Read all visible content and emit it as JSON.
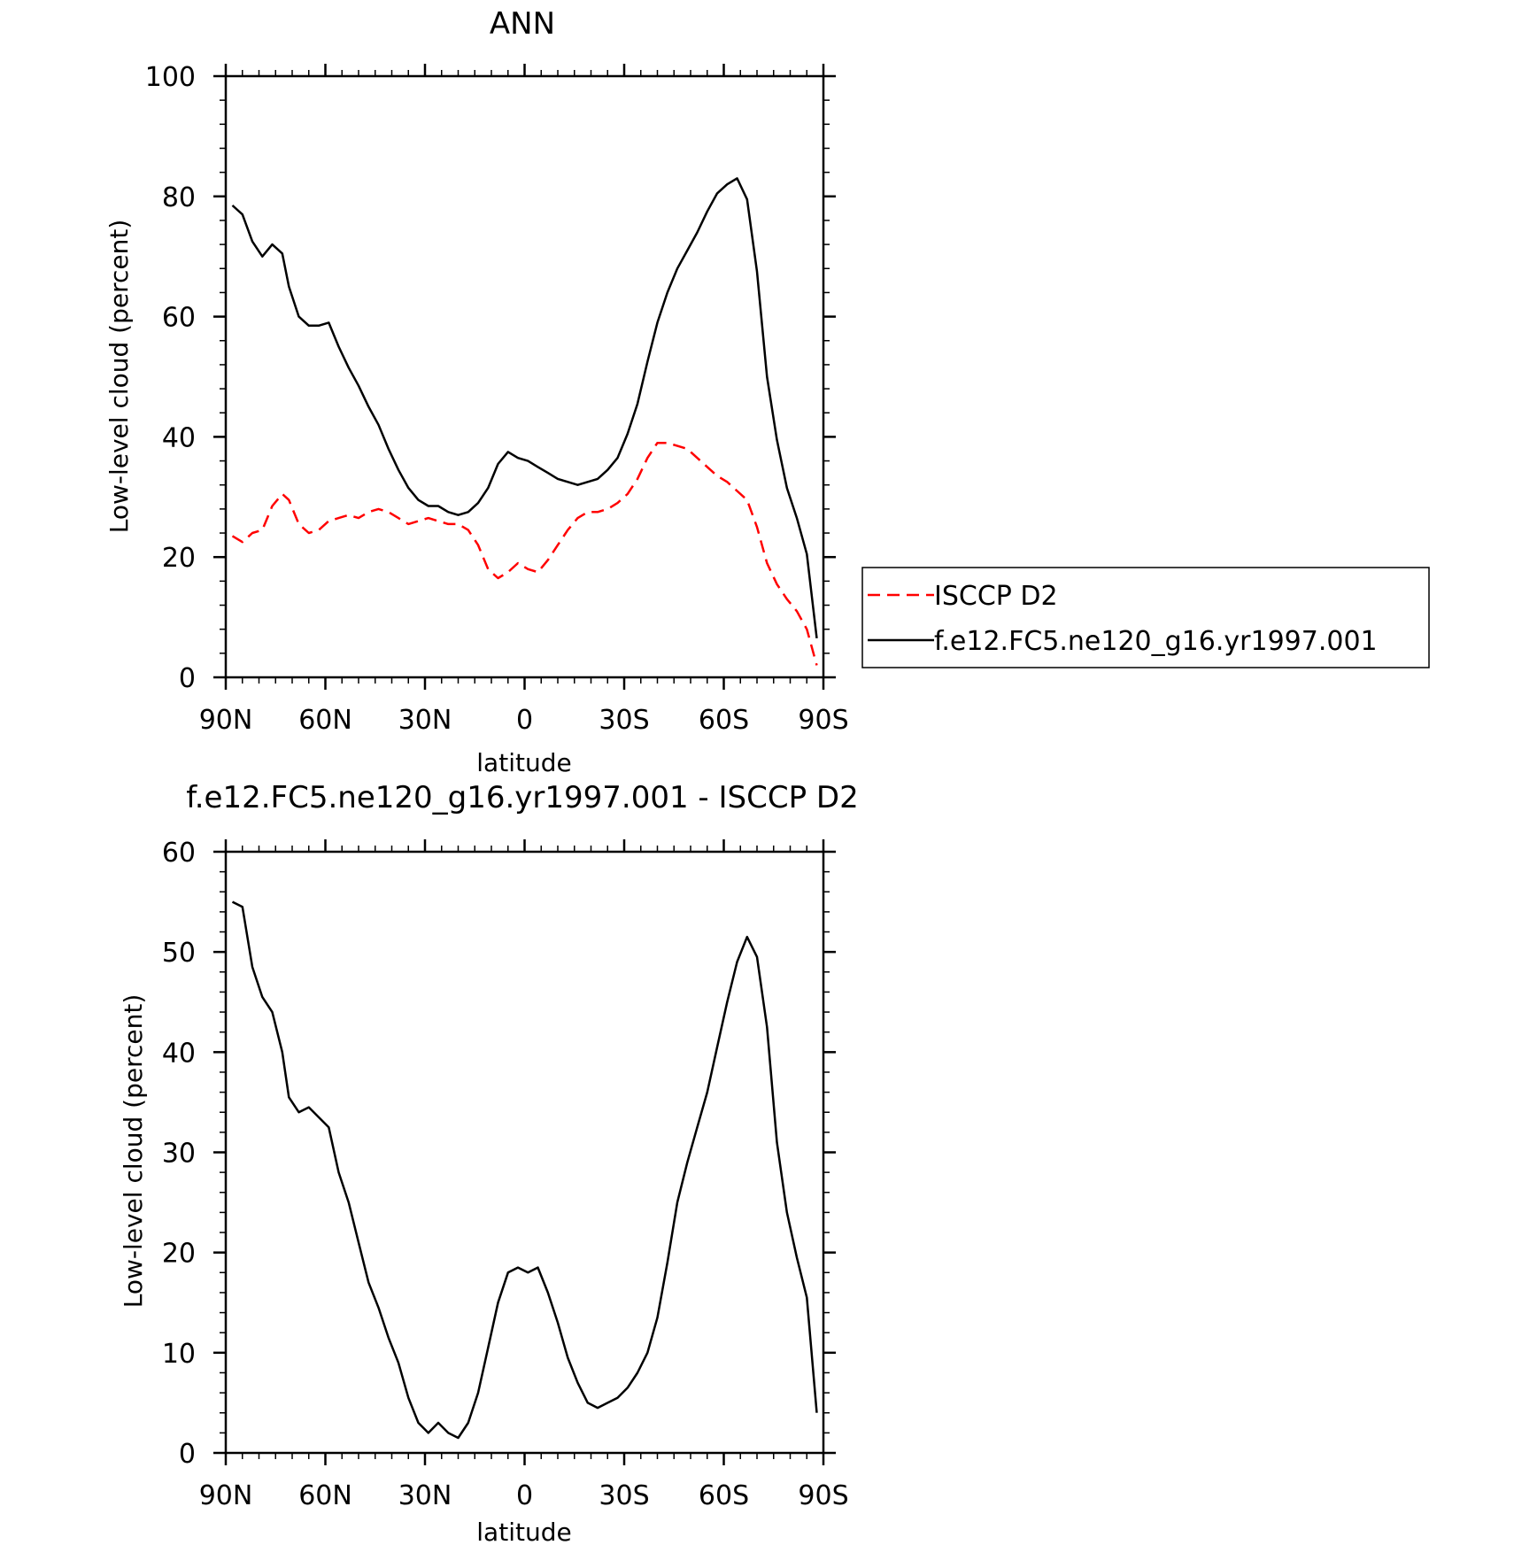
{
  "chart_data": [
    {
      "type": "line",
      "title": "ANN",
      "xlabel": "latitude",
      "ylabel": "Low-level cloud (percent)",
      "xlim": [
        90,
        -90
      ],
      "ylim": [
        0,
        100
      ],
      "x_ticks": [
        90,
        60,
        30,
        0,
        -30,
        -60,
        -90
      ],
      "x_tick_labels": [
        "90N",
        "60N",
        "30N",
        "0",
        "30S",
        "60S",
        "90S"
      ],
      "y_ticks": [
        0,
        20,
        40,
        60,
        80,
        100
      ],
      "y_tick_labels": [
        "0",
        "20",
        "40",
        "60",
        "80",
        "100"
      ],
      "legend_position": "right",
      "series": [
        {
          "name": "ISCCP D2",
          "color": "#ff0000",
          "style": "dashed",
          "x": [
            88,
            85,
            82,
            79,
            76,
            73,
            71,
            68,
            65,
            62,
            59,
            56,
            53,
            50,
            47,
            44,
            41,
            38,
            35,
            32,
            29,
            26,
            23,
            20,
            17,
            14,
            11,
            8,
            5,
            2,
            -1,
            -4,
            -7,
            -10,
            -13,
            -16,
            -19,
            -22,
            -25,
            -28,
            -31,
            -34,
            -37,
            -40,
            -43,
            -46,
            -49,
            -52,
            -55,
            -58,
            -61,
            -64,
            -67,
            -70,
            -73,
            -76,
            -79,
            -82,
            -85,
            -88
          ],
          "y": [
            23.5,
            22.5,
            24,
            24.5,
            28.5,
            30.5,
            29.5,
            25.5,
            24,
            24.5,
            26,
            26.5,
            27,
            26.5,
            27.5,
            28,
            27.5,
            26.5,
            25.5,
            26,
            26.5,
            26,
            25.5,
            25.5,
            24.5,
            22,
            18,
            16.5,
            17.5,
            19,
            18,
            17.5,
            19.5,
            22,
            24.5,
            26.5,
            27.5,
            27.5,
            28,
            29,
            30.5,
            33,
            36.5,
            39,
            39,
            38.5,
            38,
            36.5,
            35,
            33.5,
            32.5,
            31,
            29.5,
            25,
            19,
            15.5,
            13,
            11,
            8,
            2
          ]
        },
        {
          "name": "f.e12.FC5.ne120_g16.yr1997.001",
          "color": "#000000",
          "style": "solid",
          "x": [
            88,
            85,
            82,
            79,
            76,
            73,
            71,
            68,
            65,
            62,
            59,
            56,
            53,
            50,
            47,
            44,
            41,
            38,
            35,
            32,
            29,
            26,
            23,
            20,
            17,
            14,
            11,
            8,
            5,
            2,
            -1,
            -4,
            -7,
            -10,
            -13,
            -16,
            -19,
            -22,
            -25,
            -28,
            -31,
            -34,
            -37,
            -40,
            -43,
            -46,
            -49,
            -52,
            -55,
            -58,
            -61,
            -64,
            -67,
            -70,
            -73,
            -76,
            -79,
            -82,
            -85,
            -88
          ],
          "y": [
            78.5,
            77,
            72.5,
            70,
            72,
            70.5,
            65,
            60,
            58.5,
            58.5,
            59,
            55,
            51.5,
            48.5,
            45,
            42,
            38,
            34.5,
            31.5,
            29.5,
            28.5,
            28.5,
            27.5,
            27,
            27.5,
            29,
            31.5,
            35.5,
            37.5,
            36.5,
            36,
            35,
            34,
            33,
            32.5,
            32,
            32.5,
            33,
            34.5,
            36.5,
            40.5,
            45.5,
            52.5,
            59,
            64,
            68,
            71,
            74,
            77.5,
            80.5,
            82,
            83,
            79.5,
            67.5,
            50,
            39.5,
            31.5,
            26.5,
            20.5,
            6.5
          ]
        }
      ]
    },
    {
      "type": "line",
      "title": "f.e12.FC5.ne120_g16.yr1997.001 - ISCCP D2",
      "xlabel": "latitude",
      "ylabel": "Low-level cloud (percent)",
      "xlim": [
        90,
        -90
      ],
      "ylim": [
        0,
        60
      ],
      "x_ticks": [
        90,
        60,
        30,
        0,
        -30,
        -60,
        -90
      ],
      "x_tick_labels": [
        "90N",
        "60N",
        "30N",
        "0",
        "30S",
        "60S",
        "90S"
      ],
      "y_ticks": [
        0,
        10,
        20,
        30,
        40,
        50,
        60
      ],
      "y_tick_labels": [
        "0",
        "10",
        "20",
        "30",
        "40",
        "50",
        "60"
      ],
      "series": [
        {
          "color": "#000000",
          "style": "solid",
          "x": [
            88,
            85,
            82,
            79,
            76,
            73,
            71,
            68,
            65,
            62,
            59,
            56,
            53,
            50,
            47,
            44,
            41,
            38,
            35,
            32,
            29,
            26,
            23,
            20,
            17,
            14,
            11,
            8,
            5,
            2,
            -1,
            -4,
            -7,
            -10,
            -13,
            -16,
            -19,
            -22,
            -25,
            -28,
            -31,
            -34,
            -37,
            -40,
            -43,
            -46,
            -49,
            -52,
            -55,
            -58,
            -61,
            -64,
            -67,
            -70,
            -73,
            -76,
            -79,
            -82,
            -85,
            -88
          ],
          "y": [
            55,
            54.5,
            48.5,
            45.5,
            44,
            40,
            35.5,
            34,
            34.5,
            33.5,
            32.5,
            28,
            25,
            21,
            17,
            14.5,
            11.5,
            9,
            5.5,
            3,
            2,
            3,
            2,
            1.5,
            3,
            6,
            10.5,
            15,
            18,
            18.5,
            18,
            18.5,
            16,
            13,
            9.5,
            7,
            5,
            4.5,
            5,
            5.5,
            6.5,
            8,
            10,
            13.5,
            19,
            25,
            29,
            32.5,
            36,
            40.5,
            45,
            49,
            51.5,
            49.5,
            42.5,
            31,
            24,
            19.5,
            15.5,
            4
          ]
        }
      ]
    }
  ]
}
